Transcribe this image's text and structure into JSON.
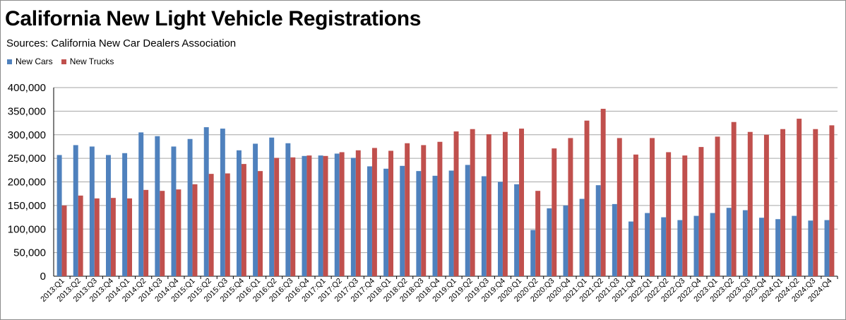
{
  "chart_data": {
    "type": "bar",
    "title": "California New Light Vehicle Registrations",
    "subtitle": "Sources:  California New Car Dealers Association",
    "legend_position": "top-left",
    "ylim": [
      0,
      400000
    ],
    "yticks": [
      0,
      50000,
      100000,
      150000,
      200000,
      250000,
      300000,
      350000,
      400000
    ],
    "ytick_labels": [
      "0",
      "50,000",
      "100,000",
      "150,000",
      "200,000",
      "250,000",
      "300,000",
      "350,000",
      "400,000"
    ],
    "grid": true,
    "categories": [
      "2013:Q1",
      "2013:Q2",
      "2013:Q3",
      "2013:Q4",
      "2014:Q1",
      "2014:Q2",
      "2014:Q3",
      "2014:Q4",
      "2015:Q1",
      "2015:Q2",
      "2015:Q3",
      "2015:Q4",
      "2016:Q1",
      "2016:Q2",
      "2016:Q3",
      "2016:Q4",
      "2017:Q1",
      "2017:Q2",
      "2017:Q3",
      "2017:Q4",
      "2018:Q1",
      "2018:Q2",
      "2018:Q3",
      "2018:Q4",
      "2019:Q1",
      "2019:Q2",
      "2019:Q3",
      "2019:Q4",
      "2020:Q1",
      "2020:Q2",
      "2020:Q3",
      "2020:Q4",
      "2021:Q1",
      "2021:Q2",
      "2021:Q3",
      "2021:Q4",
      "2022:Q1",
      "2022:Q2",
      "2022:Q3",
      "2022:Q4",
      "2023:Q1",
      "2023:Q2",
      "2023:Q3",
      "2023:Q4",
      "2024:Q1",
      "2024:Q2",
      "2024:Q3",
      "2024:Q4"
    ],
    "series": [
      {
        "name": "New Cars",
        "color": "#4f81bd",
        "values": [
          257000,
          278000,
          275000,
          257000,
          261000,
          305000,
          297000,
          275000,
          291000,
          316000,
          313000,
          267000,
          281000,
          294000,
          282000,
          255000,
          256000,
          260000,
          251000,
          233000,
          228000,
          234000,
          223000,
          213000,
          224000,
          236000,
          212000,
          200000,
          195000,
          98000,
          144000,
          150000,
          164000,
          193000,
          153000,
          116000,
          134000,
          125000,
          119000,
          128000,
          134000,
          145000,
          140000,
          124000,
          121000,
          128000,
          118000,
          119000
        ]
      },
      {
        "name": "New Trucks",
        "color": "#c0504d",
        "values": [
          150000,
          171000,
          165000,
          166000,
          165000,
          183000,
          181000,
          184000,
          195000,
          217000,
          218000,
          238000,
          223000,
          251000,
          252000,
          256000,
          255000,
          263000,
          267000,
          272000,
          266000,
          282000,
          278000,
          285000,
          307000,
          312000,
          301000,
          306000,
          313000,
          181000,
          271000,
          293000,
          330000,
          355000,
          293000,
          258000,
          293000,
          263000,
          256000,
          274000,
          296000,
          327000,
          306000,
          300000,
          312000,
          334000,
          312000,
          320000
        ]
      }
    ]
  }
}
